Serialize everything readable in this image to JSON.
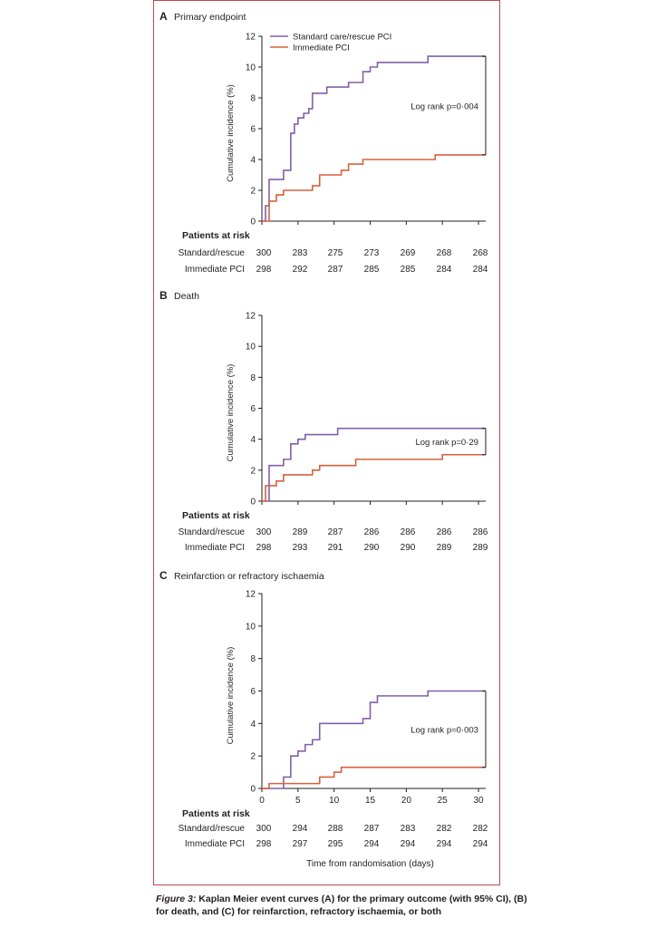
{
  "colors": {
    "standard": "#8060a8",
    "immediate": "#d9613c",
    "axis": "#231f20",
    "frame": "#c7464f"
  },
  "caption": {
    "label": "Figure 3:",
    "text": "Kaplan Meier event curves (A) for the primary outcome (with 95% CI), (B) for death, and (C) for reinfarction, refractory ischaemia, or both"
  },
  "chart_data": [
    {
      "type": "line",
      "step": true,
      "letter": "A",
      "title": "Primary endpoint",
      "ylabel": "Cumulative incidence (%)",
      "xlabel": "",
      "ylim": [
        0,
        12
      ],
      "yticks": [
        0,
        2,
        4,
        6,
        8,
        10,
        12
      ],
      "xlim": [
        0,
        31
      ],
      "legend": [
        "Standard care/rescue PCI",
        "Immediate PCI"
      ],
      "annotation": "Log rank p=0·004",
      "bracket_x": 31,
      "series": [
        {
          "name": "Standard care/rescue PCI",
          "key": "standard",
          "points": [
            [
              0,
              0
            ],
            [
              0.5,
              1.0
            ],
            [
              1,
              2.7
            ],
            [
              3,
              3.3
            ],
            [
              4,
              5.7
            ],
            [
              4.5,
              6.3
            ],
            [
              5,
              6.7
            ],
            [
              5.8,
              7.0
            ],
            [
              6.5,
              7.3
            ],
            [
              7,
              8.3
            ],
            [
              9,
              8.7
            ],
            [
              12,
              9.0
            ],
            [
              14,
              9.7
            ],
            [
              15,
              10.0
            ],
            [
              16,
              10.3
            ],
            [
              22,
              10.3
            ],
            [
              23,
              10.7
            ],
            [
              31,
              10.7
            ]
          ]
        },
        {
          "name": "Immediate PCI",
          "key": "immediate",
          "points": [
            [
              0,
              0
            ],
            [
              1,
              1.3
            ],
            [
              2,
              1.7
            ],
            [
              3,
              2.0
            ],
            [
              6,
              2.0
            ],
            [
              7,
              2.3
            ],
            [
              8,
              3.0
            ],
            [
              10,
              3.0
            ],
            [
              11,
              3.3
            ],
            [
              12,
              3.7
            ],
            [
              14,
              4.0
            ],
            [
              23,
              4.0
            ],
            [
              24,
              4.3
            ],
            [
              31,
              4.3
            ]
          ]
        }
      ],
      "risk": {
        "header": "Patients at risk",
        "rows": [
          {
            "label": "Standard/rescue",
            "values": [
              "300",
              "283",
              "275",
              "273",
              "269",
              "268",
              "268"
            ]
          },
          {
            "label": "Immediate PCI",
            "values": [
              "298",
              "292",
              "287",
              "285",
              "285",
              "284",
              "284"
            ]
          }
        ]
      }
    },
    {
      "type": "line",
      "step": true,
      "letter": "B",
      "title": "Death",
      "ylabel": "Cumulative incidence (%)",
      "xlabel": "",
      "ylim": [
        0,
        12
      ],
      "yticks": [
        0,
        2,
        4,
        6,
        8,
        10,
        12
      ],
      "xlim": [
        0,
        31
      ],
      "annotation": "Log rank p=0·29",
      "bracket_x": 31,
      "series": [
        {
          "name": "Standard care/rescue PCI",
          "key": "standard",
          "points": [
            [
              0,
              0
            ],
            [
              1,
              2.3
            ],
            [
              3,
              2.7
            ],
            [
              4,
              3.7
            ],
            [
              5,
              4.0
            ],
            [
              6,
              4.3
            ],
            [
              10,
              4.3
            ],
            [
              10.5,
              4.7
            ],
            [
              31,
              4.7
            ]
          ]
        },
        {
          "name": "Immediate PCI",
          "key": "immediate",
          "points": [
            [
              0,
              0
            ],
            [
              0.5,
              1.0
            ],
            [
              2,
              1.3
            ],
            [
              3,
              1.7
            ],
            [
              6,
              1.7
            ],
            [
              7,
              2.0
            ],
            [
              8,
              2.3
            ],
            [
              12,
              2.3
            ],
            [
              13,
              2.7
            ],
            [
              24,
              2.7
            ],
            [
              25,
              3.0
            ],
            [
              31,
              3.0
            ]
          ]
        }
      ],
      "risk": {
        "header": "Patients at risk",
        "rows": [
          {
            "label": "Standard/rescue",
            "values": [
              "300",
              "289",
              "287",
              "286",
              "286",
              "286",
              "286"
            ]
          },
          {
            "label": "Immediate PCI",
            "values": [
              "298",
              "293",
              "291",
              "290",
              "290",
              "289",
              "289"
            ]
          }
        ]
      }
    },
    {
      "type": "line",
      "step": true,
      "letter": "C",
      "title": "Reinfarction or refractory ischaemia",
      "ylabel": "Cumulative incidence (%)",
      "xlabel": "Time from randomisation (days)",
      "ylim": [
        0,
        12
      ],
      "yticks": [
        0,
        2,
        4,
        6,
        8,
        10,
        12
      ],
      "xlim": [
        0,
        31
      ],
      "xticks": [
        0,
        5,
        10,
        15,
        20,
        25,
        30
      ],
      "annotation": "Log rank p=0·003",
      "bracket_x": 31,
      "series": [
        {
          "name": "Standard care/rescue PCI",
          "key": "standard",
          "points": [
            [
              0,
              0
            ],
            [
              3,
              0.7
            ],
            [
              4,
              2.0
            ],
            [
              5,
              2.3
            ],
            [
              6,
              2.7
            ],
            [
              7,
              3.0
            ],
            [
              8,
              4.0
            ],
            [
              13,
              4.0
            ],
            [
              14,
              4.3
            ],
            [
              15,
              5.3
            ],
            [
              16,
              5.7
            ],
            [
              22,
              5.7
            ],
            [
              23,
              6.0
            ],
            [
              31,
              6.0
            ]
          ]
        },
        {
          "name": "Immediate PCI",
          "key": "immediate",
          "points": [
            [
              0,
              0
            ],
            [
              1,
              0.3
            ],
            [
              7,
              0.3
            ],
            [
              8,
              0.7
            ],
            [
              10,
              1.0
            ],
            [
              11,
              1.3
            ],
            [
              31,
              1.3
            ]
          ]
        }
      ],
      "risk": {
        "header": "Patients at risk",
        "rows": [
          {
            "label": "Standard/rescue",
            "values": [
              "300",
              "294",
              "288",
              "287",
              "283",
              "282",
              "282"
            ]
          },
          {
            "label": "Immediate PCI",
            "values": [
              "298",
              "297",
              "295",
              "294",
              "294",
              "294",
              "294"
            ]
          }
        ]
      }
    }
  ]
}
